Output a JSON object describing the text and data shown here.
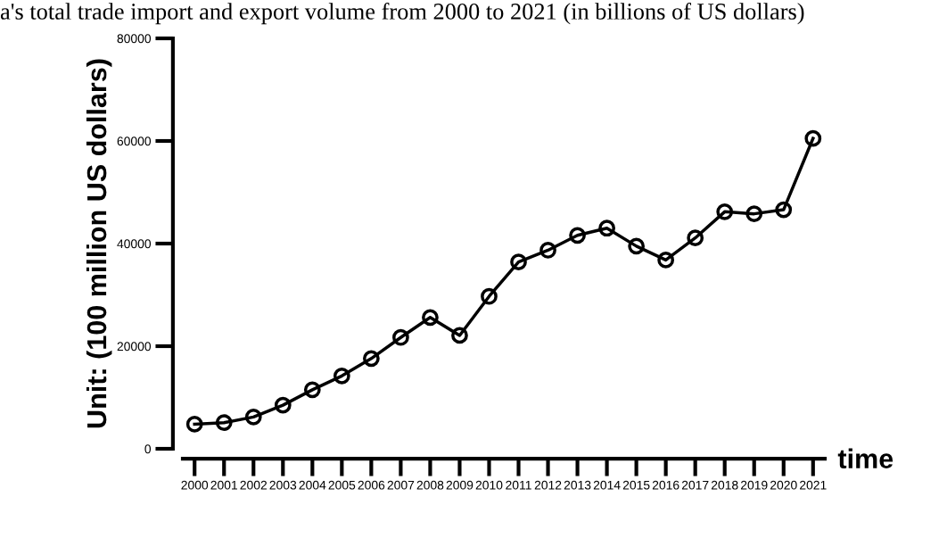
{
  "chart_data": {
    "type": "line",
    "title": "a's total trade import and export volume from 2000 to 2021 (in billions of US dollars)",
    "xlabel": "time",
    "ylabel": "Unit: (100 million US dollars)",
    "categories": [
      "2000",
      "2001",
      "2002",
      "2003",
      "2004",
      "2005",
      "2006",
      "2007",
      "2008",
      "2009",
      "2010",
      "2011",
      "2012",
      "2013",
      "2014",
      "2015",
      "2016",
      "2017",
      "2018",
      "2019",
      "2020",
      "2021"
    ],
    "series": [
      {
        "color": "#000000",
        "values": [
          4800,
          5100,
          6200,
          8500,
          11500,
          14200,
          17600,
          21700,
          25600,
          22100,
          29700,
          36400,
          38700,
          41600,
          43000,
          39500,
          36800,
          41100,
          46200,
          45800,
          46600,
          60500
        ]
      }
    ],
    "ylim": [
      0,
      80000
    ],
    "yticks": [
      0,
      20000,
      40000,
      60000,
      80000
    ],
    "grid": false,
    "legend": false,
    "marker": "circle",
    "line_style": "solid"
  }
}
